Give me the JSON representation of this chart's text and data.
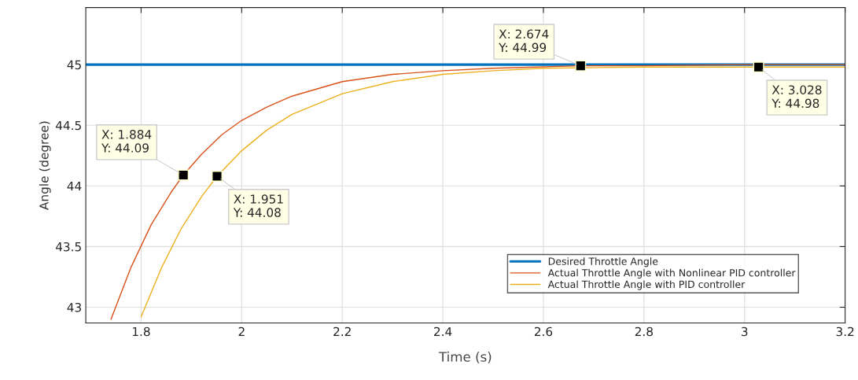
{
  "chart_data": {
    "type": "line",
    "xlabel": "Time (s)",
    "ylabel": "Angle (degree)",
    "xlim": [
      1.69,
      3.2
    ],
    "ylim": [
      42.87,
      45.47
    ],
    "xticks": [
      1.8,
      2,
      2.2,
      2.4,
      2.6,
      2.8,
      3,
      3.2
    ],
    "yticks": [
      43,
      43.5,
      44,
      44.5,
      45
    ],
    "grid": true,
    "legend": "bottom right",
    "line_style": "solid",
    "marker": "none",
    "series": [
      {
        "name": "Desired Throttle Angle",
        "color": "#0072bd",
        "x": [
          1.69,
          3.2
        ],
        "values": [
          45,
          45
        ]
      },
      {
        "name": "Actual Throttle Angle with Nonlinear PID controller",
        "color": "#d95319",
        "x": [
          1.74,
          1.78,
          1.82,
          1.86,
          1.884,
          1.92,
          1.96,
          2.0,
          2.05,
          2.1,
          2.2,
          2.3,
          2.4,
          2.5,
          2.674,
          2.8,
          3.0,
          3.2
        ],
        "values": [
          42.9,
          43.33,
          43.68,
          43.95,
          44.09,
          44.26,
          44.42,
          44.54,
          44.65,
          44.74,
          44.86,
          44.92,
          44.95,
          44.97,
          44.99,
          44.99,
          45.0,
          45.0
        ]
      },
      {
        "name": "Actual Throttle Angle with PID controller",
        "color": "#edb120",
        "x": [
          1.8,
          1.84,
          1.88,
          1.92,
          1.951,
          2.0,
          2.05,
          2.1,
          2.2,
          2.3,
          2.4,
          2.5,
          2.6,
          2.8,
          3.028,
          3.2
        ],
        "values": [
          42.92,
          43.32,
          43.65,
          43.91,
          44.08,
          44.29,
          44.46,
          44.59,
          44.76,
          44.86,
          44.92,
          44.95,
          44.97,
          44.98,
          44.98,
          44.98
        ]
      }
    ],
    "annotations": [
      {
        "text": "X: 1.884\nY: 44.09",
        "x": 1.884,
        "y": 44.09
      },
      {
        "text": "X: 1.951\nY: 44.08",
        "x": 1.951,
        "y": 44.08
      },
      {
        "text": "X: 2.674\nY: 44.99",
        "x": 2.674,
        "y": 44.99
      },
      {
        "text": "X: 3.028\nY: 44.98",
        "x": 3.028,
        "y": 44.98
      }
    ]
  }
}
